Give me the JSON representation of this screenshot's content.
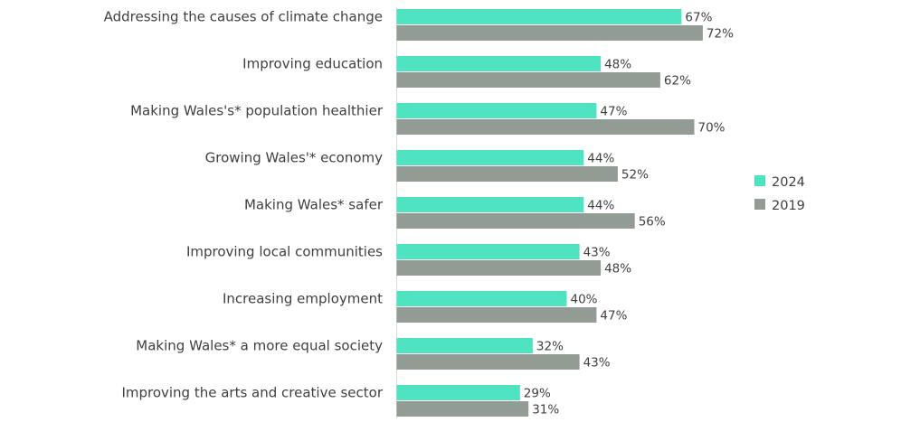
{
  "chart_data": {
    "type": "bar",
    "orientation": "horizontal",
    "categories": [
      "Addressing the causes of climate change",
      "Improving education",
      "Making Wales's* population healthier ",
      "Growing Wales'* economy",
      "Making Wales* safer",
      "Improving local communities",
      "Increasing employment",
      "Making Wales* a more equal society",
      "Improving the arts and creative sector"
    ],
    "series": [
      {
        "name": "2024",
        "color": "#4fe3c1",
        "values": [
          67,
          48,
          47,
          44,
          44,
          43,
          40,
          32,
          29
        ],
        "labels": [
          "67%",
          "48%",
          "47%",
          "44%",
          "44%",
          "43%",
          "40%",
          "32%",
          "29%"
        ]
      },
      {
        "name": "2019",
        "color": "#939b95",
        "values": [
          72,
          62,
          70,
          52,
          56,
          48,
          47,
          43,
          31
        ],
        "labels": [
          "72%",
          "62%",
          "70%",
          "52%",
          "56%",
          "48%",
          "47%",
          "43%",
          "31%"
        ]
      }
    ],
    "unit": "%",
    "xlim": [
      0,
      100
    ],
    "grid": false,
    "legend_position": "right",
    "title": "",
    "xlabel": "",
    "ylabel": ""
  }
}
